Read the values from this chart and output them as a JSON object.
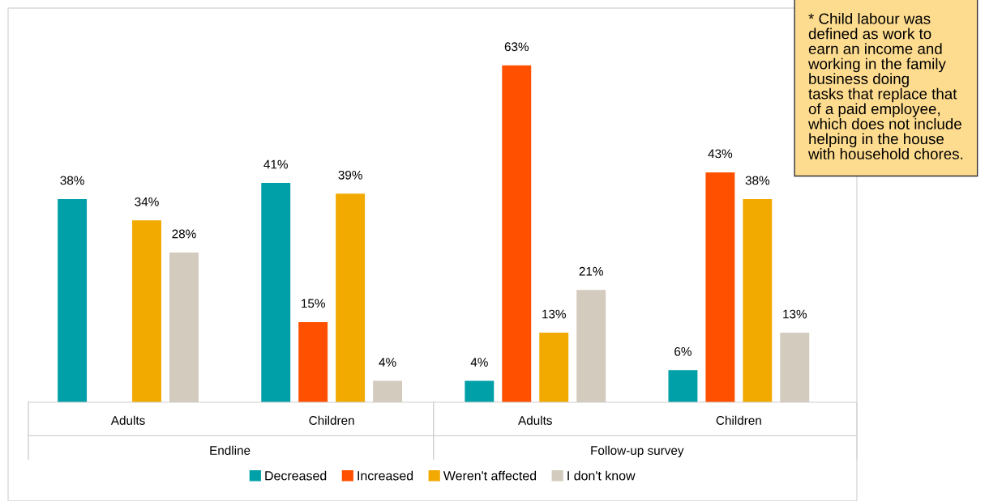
{
  "chart_data": {
    "type": "bar",
    "categories": [
      "Adults",
      "Children",
      "Adults",
      "Children"
    ],
    "series": [
      {
        "name": "Decreased",
        "color": "#00a0a8",
        "values": [
          38,
          41,
          4,
          6
        ],
        "value_labels": [
          "38%",
          "41%",
          "4%",
          "6%"
        ]
      },
      {
        "name": "Increased",
        "color": "#ff5000",
        "values": [
          null,
          15,
          63,
          43
        ],
        "value_labels": [
          null,
          "15%",
          "63%",
          "43%"
        ]
      },
      {
        "name": "Weren't affected",
        "color": "#f2a900",
        "values": [
          34,
          39,
          13,
          38
        ],
        "value_labels": [
          "34%",
          "39%",
          "13%",
          "38%"
        ]
      },
      {
        "name": "I don't know",
        "color": "#d3cbbd",
        "values": [
          28,
          4,
          21,
          13
        ],
        "value_labels": [
          "28%",
          "4%",
          "21%",
          "13%"
        ]
      }
    ],
    "annotations": [
      "Endline",
      "Follow-up survey",
      "* Child labour was\ndefined as work to\nearn an income and\nworking in the family\nbusiness doing\ntasks that replace that\nof a paid employee,\nwhich does not include\nhelping in the house\nwith household chores."
    ],
    "legend": "bottom",
    "grid": false
  }
}
